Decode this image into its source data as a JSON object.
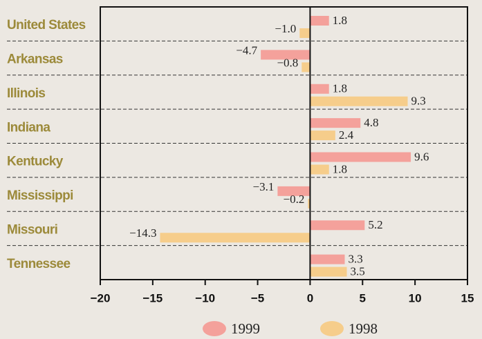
{
  "chart_data": {
    "type": "bar",
    "orientation": "horizontal",
    "categories": [
      "United States",
      "Arkansas",
      "Illinois",
      "Indiana",
      "Kentucky",
      "Mississippi",
      "Missouri",
      "Tennessee"
    ],
    "series": [
      {
        "name": "1999",
        "color": "#f4a19b",
        "values": [
          1.8,
          -4.7,
          1.8,
          4.8,
          9.6,
          -3.1,
          5.2,
          3.3
        ],
        "value_labels": [
          "1.8",
          "−4.7",
          "1.8",
          "4.8",
          "9.6",
          "−3.1",
          "5.2",
          "3.3"
        ]
      },
      {
        "name": "1998",
        "color": "#f6cd8b",
        "values": [
          -1.0,
          -0.8,
          9.3,
          2.4,
          1.8,
          -0.2,
          -14.3,
          3.5
        ],
        "value_labels": [
          "−1.0",
          "−0.8",
          "9.3",
          "2.4",
          "1.8",
          "−0.2",
          "−14.3",
          "3.5"
        ]
      }
    ],
    "xlim": [
      -20,
      15
    ],
    "xticks": [
      {
        "value": -20,
        "label": "−20"
      },
      {
        "value": -15,
        "label": "−15"
      },
      {
        "value": -10,
        "label": "−10"
      },
      {
        "value": -5,
        "label": "−5"
      },
      0,
      5,
      10,
      15
    ]
  }
}
